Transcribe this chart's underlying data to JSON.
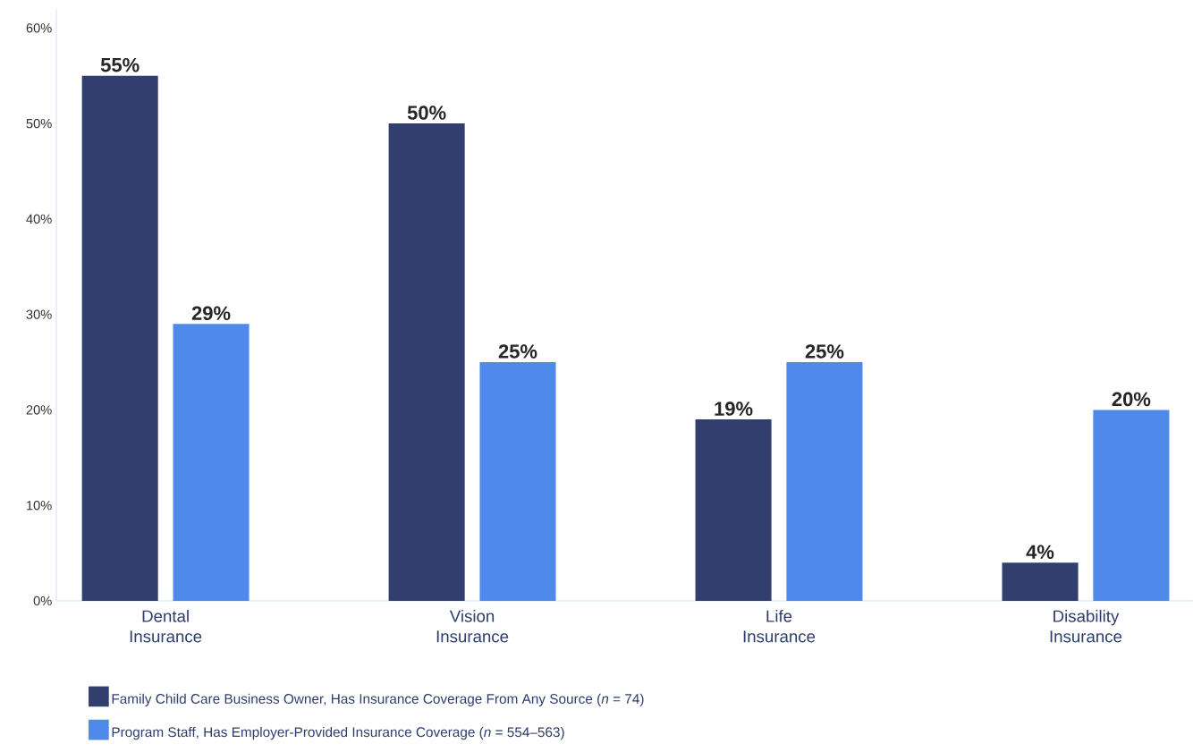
{
  "chart_data": {
    "type": "bar",
    "categories": [
      "Dental Insurance",
      "Vision Insurance",
      "Life Insurance",
      "Disability Insurance"
    ],
    "series": [
      {
        "name": "Family Child Care Business Owner, Has Insurance Coverage From Any Source (*n* = 74)",
        "color": "#323f6e",
        "values": [
          55,
          50,
          19,
          4
        ],
        "value_labels": [
          "55%",
          "50%",
          "19%",
          "4%"
        ]
      },
      {
        "name": "Program Staff, Has Employer-Provided Insurance Coverage (*n* = 554–563)",
        "color": "#4f8aeb",
        "values": [
          29,
          25,
          25,
          20
        ],
        "value_labels": [
          "29%",
          "25%",
          "25%",
          "20%"
        ]
      }
    ],
    "ylim": [
      0,
      62
    ],
    "yticks": [
      {
        "value": 0,
        "label": "0%"
      },
      {
        "value": 10,
        "label": "10%"
      },
      {
        "value": 20,
        "label": "20%"
      },
      {
        "value": 30,
        "label": "30%"
      },
      {
        "value": 40,
        "label": "40%"
      },
      {
        "value": 50,
        "label": "50%"
      },
      {
        "value": 60,
        "label": "60%"
      }
    ],
    "grid": false,
    "legend": "bottom left"
  }
}
